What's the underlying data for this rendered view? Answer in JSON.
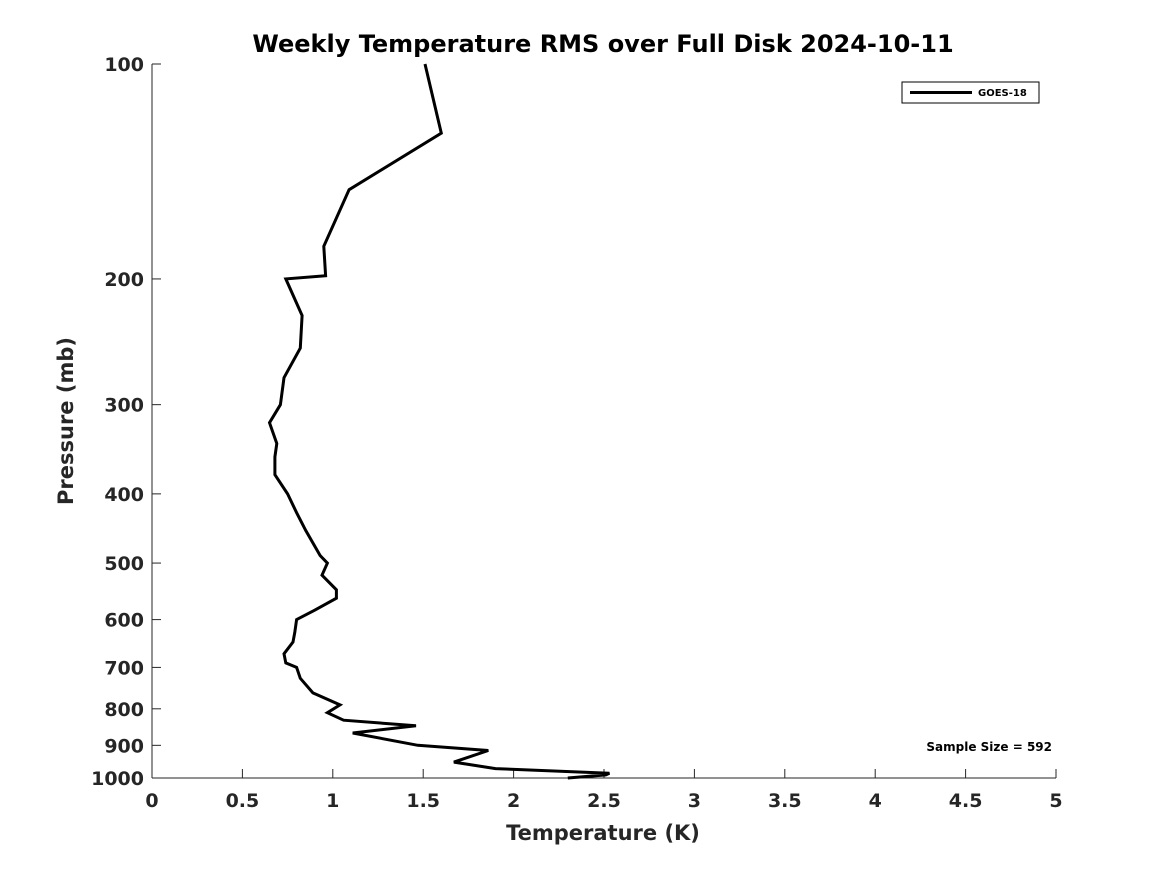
{
  "chart_data": {
    "type": "line",
    "title": "Weekly Temperature RMS over Full Disk 2024-10-11",
    "xlabel": "Temperature (K)",
    "ylabel": "Pressure (mb)",
    "xlim": [
      0,
      5
    ],
    "ylim": [
      100,
      1000
    ],
    "yscale": "log",
    "yreversed": true,
    "grid": false,
    "legend_position": "top-right",
    "x_ticks": [
      0,
      0.5,
      1,
      1.5,
      2,
      2.5,
      3,
      3.5,
      4,
      4.5,
      5
    ],
    "x_tick_labels": [
      "0",
      "0.5",
      "1",
      "1.5",
      "2",
      "2.5",
      "3",
      "3.5",
      "4",
      "4.5",
      "5"
    ],
    "y_ticks": [
      100,
      200,
      300,
      400,
      500,
      600,
      700,
      800,
      900,
      1000
    ],
    "y_tick_labels": [
      "100",
      "200",
      "300",
      "400",
      "500",
      "600",
      "700",
      "800",
      "900",
      "1000"
    ],
    "annotation": "Sample Size = 592",
    "series": [
      {
        "name": "GOES-18",
        "color": "#000000",
        "points": [
          [
            1.51,
            100
          ],
          [
            1.6,
            125
          ],
          [
            1.09,
            150
          ],
          [
            0.95,
            180
          ],
          [
            0.96,
            198
          ],
          [
            0.74,
            200
          ],
          [
            0.83,
            225
          ],
          [
            0.82,
            250
          ],
          [
            0.73,
            275
          ],
          [
            0.71,
            300
          ],
          [
            0.65,
            318
          ],
          [
            0.69,
            340
          ],
          [
            0.68,
            355
          ],
          [
            0.68,
            376
          ],
          [
            0.75,
            400
          ],
          [
            0.8,
            425
          ],
          [
            0.85,
            450
          ],
          [
            0.93,
            488
          ],
          [
            0.97,
            500
          ],
          [
            0.94,
            520
          ],
          [
            1.02,
            545
          ],
          [
            1.02,
            560
          ],
          [
            0.9,
            582
          ],
          [
            0.8,
            600
          ],
          [
            0.79,
            625
          ],
          [
            0.78,
            645
          ],
          [
            0.73,
            670
          ],
          [
            0.74,
            690
          ],
          [
            0.8,
            700
          ],
          [
            0.82,
            725
          ],
          [
            0.89,
            760
          ],
          [
            1.04,
            790
          ],
          [
            0.97,
            810
          ],
          [
            1.06,
            830
          ],
          [
            1.46,
            845
          ],
          [
            1.11,
            865
          ],
          [
            1.47,
            900
          ],
          [
            1.86,
            915
          ],
          [
            1.67,
            950
          ],
          [
            1.9,
            970
          ],
          [
            2.53,
            985
          ],
          [
            2.51,
            990
          ],
          [
            2.3,
            1000
          ]
        ]
      }
    ]
  }
}
